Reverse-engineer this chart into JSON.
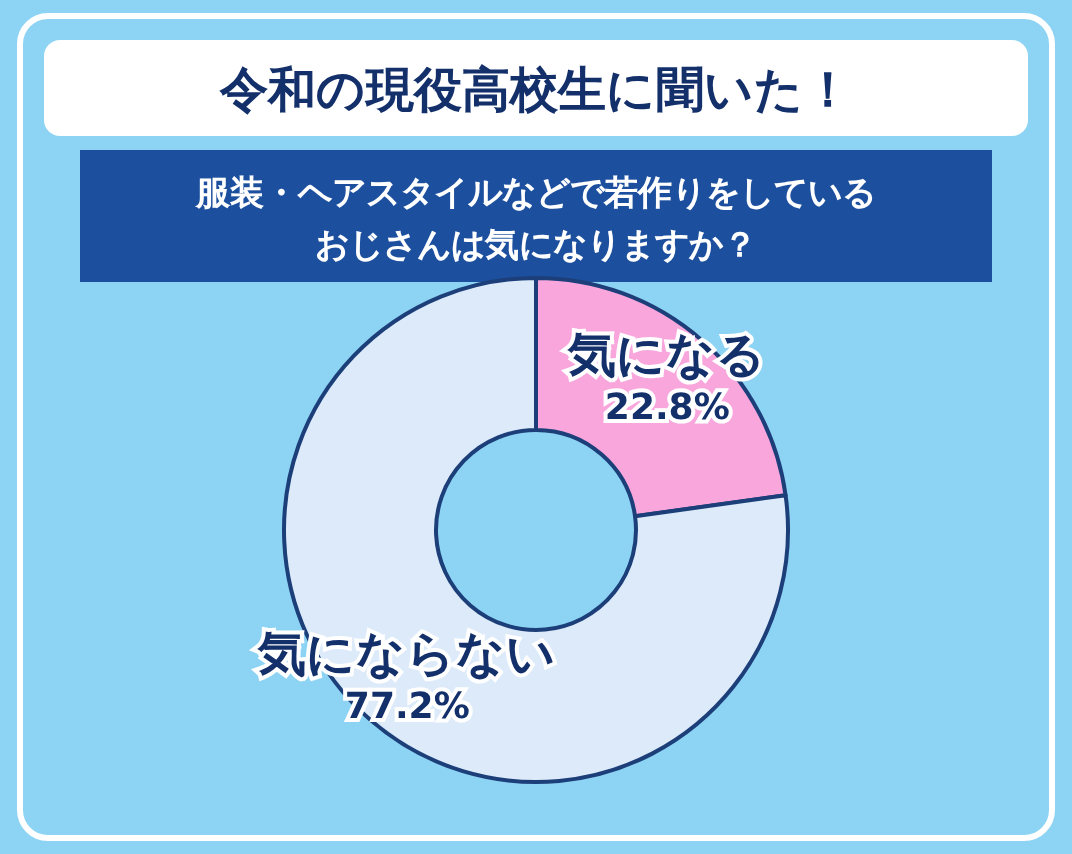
{
  "chart_data": {
    "type": "donut",
    "title": "令和の現役高校生に聞いた！",
    "subtitle": "服装・ヘアスタイルなどで若作りをしているおじさんは気になりますか？",
    "categories": [
      "気になる",
      "気にならない"
    ],
    "values": [
      22.8,
      77.2
    ],
    "value_labels": [
      "22.8%",
      "77.2%"
    ],
    "colors": [
      "#f9a6dc",
      "#dceaf9"
    ]
  }
}
